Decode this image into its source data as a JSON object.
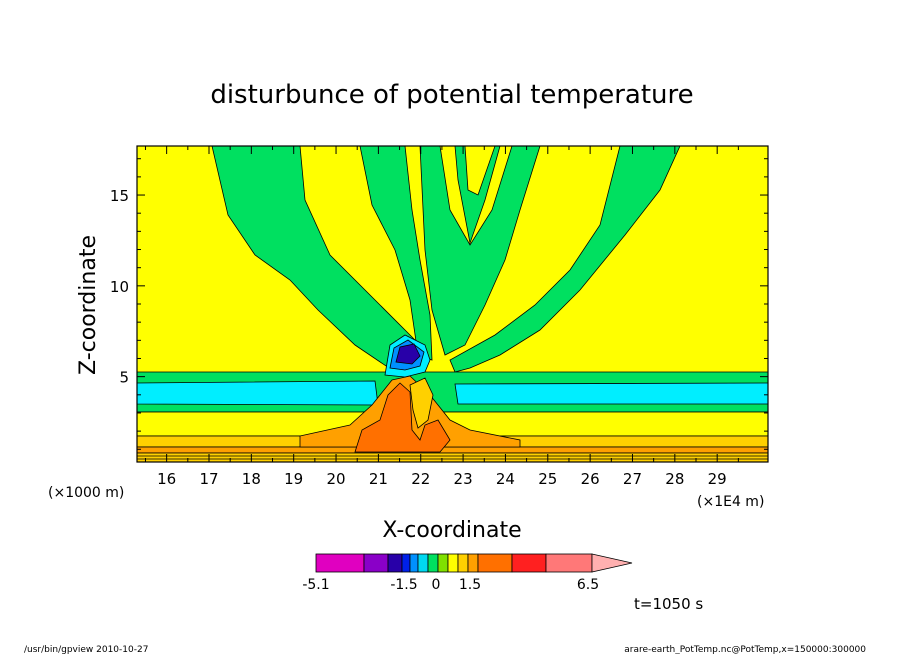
{
  "chart_data": {
    "type": "heatmap",
    "title": "disturbunce of potential temperature",
    "xlabel": "X-coordinate",
    "ylabel": "Z-coordinate",
    "x_unit_left": "(×1000 m)",
    "x_unit_right": "(×1E4 m)",
    "xlim": [
      15.3,
      30.2
    ],
    "ylim": [
      0.3,
      17.7
    ],
    "x_ticks": [
      16,
      17,
      18,
      19,
      20,
      21,
      22,
      23,
      24,
      25,
      26,
      27,
      28,
      29
    ],
    "y_ticks": [
      5,
      10,
      15
    ],
    "grid": false,
    "colorbar": {
      "colors": [
        "#e000c0",
        "#8a00c8",
        "#2800a8",
        "#0020e8",
        "#0090ff",
        "#00d8f0",
        "#00e060",
        "#80e000",
        "#ffff00",
        "#ffd000",
        "#ffa000",
        "#ff7000",
        "#ff2020",
        "#ff7878",
        "#ffb0b0"
      ],
      "tick_labels": [
        "-5.1",
        "-1.5",
        "0",
        "1.5",
        "6.5"
      ]
    },
    "time_label": "t=1050 s",
    "footer_left": "/usr/bin/gpview  2010-10-27",
    "footer_right": "arare-earth_PotTemp.nc@PotTemp,x=150000:300000"
  }
}
